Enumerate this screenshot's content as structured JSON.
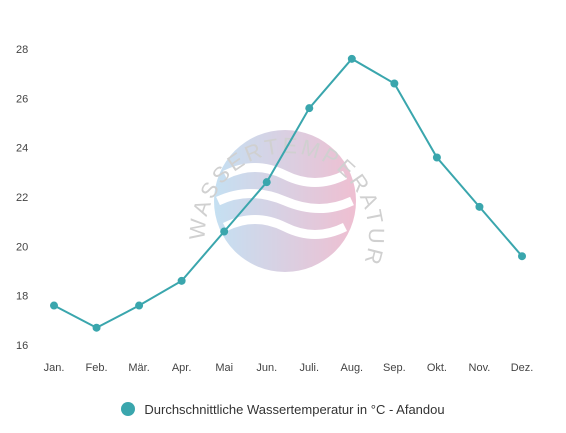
{
  "colors": {
    "series": "#3aa6ad"
  },
  "watermark": {
    "text": "WASSERTEMPERATUR.ORG",
    "icon": "wave-circle-logo"
  },
  "chart_data": {
    "type": "line",
    "categories": [
      "Jan.",
      "Feb.",
      "Mär.",
      "Apr.",
      "Mai",
      "Jun.",
      "Juli.",
      "Aug.",
      "Sep.",
      "Okt.",
      "Nov.",
      "Dez."
    ],
    "series": [
      {
        "name": "Durchschnittliche Wassertemperatur in °C - Afandou",
        "values": [
          17.6,
          16.7,
          17.6,
          18.6,
          20.6,
          22.6,
          25.6,
          27.6,
          26.6,
          23.6,
          21.6,
          19.6
        ]
      }
    ],
    "yticks": [
      16,
      18,
      20,
      22,
      24,
      26,
      28
    ],
    "ylim": [
      15.5,
      29
    ],
    "grid": false,
    "legend_position": "bottom-center"
  }
}
